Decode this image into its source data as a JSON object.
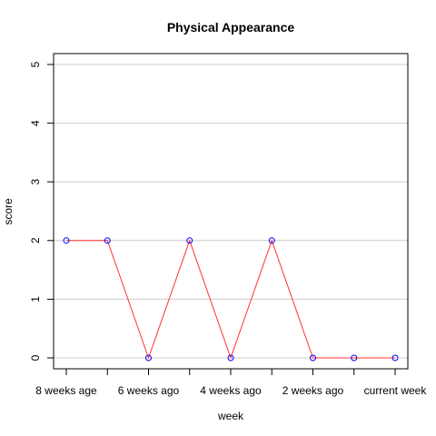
{
  "chart_data": {
    "type": "line",
    "title": "Physical Appearance",
    "xlabel": "week",
    "ylabel": "score",
    "x_tick_labels": [
      "8 weeks age",
      "6 weeks ago",
      "4 weeks ago",
      "2 weeks ago",
      "current week"
    ],
    "x_tick_indices": [
      0,
      2,
      4,
      6,
      8
    ],
    "y_ticks": [
      "0",
      "1",
      "2",
      "3",
      "4",
      "5"
    ],
    "ylim": [
      0,
      5
    ],
    "grid": "horizontal",
    "series": [
      {
        "values": [
          2,
          2,
          0,
          2,
          0,
          2,
          0,
          0,
          0
        ],
        "line_color": "#ff3333",
        "point_color": "#0000ff"
      }
    ]
  }
}
